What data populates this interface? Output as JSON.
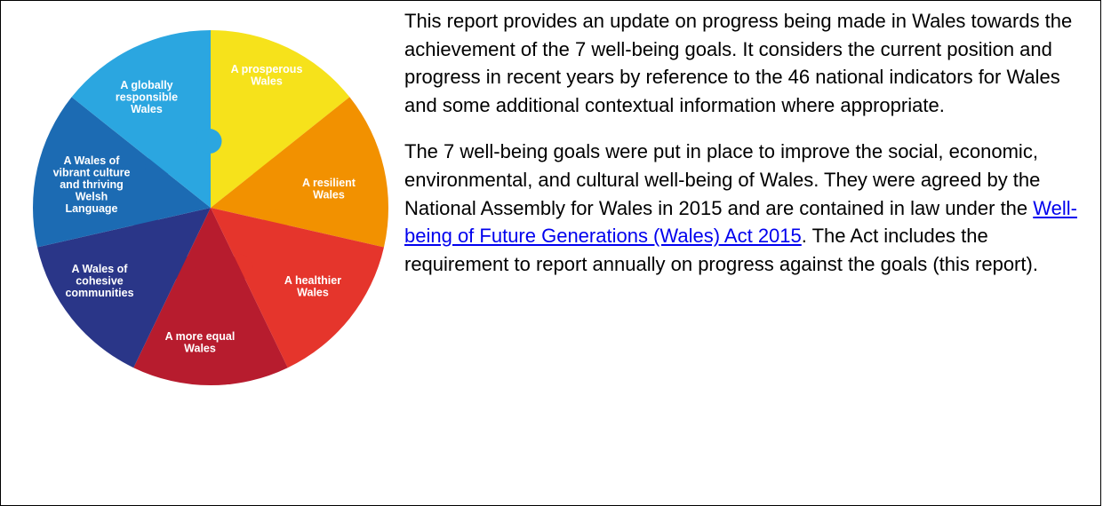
{
  "wheel": {
    "goals": [
      {
        "lines": [
          "A prosperous",
          "Wales"
        ],
        "color": "#f6e21b"
      },
      {
        "lines": [
          "A resilient",
          "Wales"
        ],
        "color": "#f29100"
      },
      {
        "lines": [
          "A healthier",
          "Wales"
        ],
        "color": "#e5352c"
      },
      {
        "lines": [
          "A more equal",
          "Wales"
        ],
        "color": "#b71c2e"
      },
      {
        "lines": [
          "A Wales of",
          "cohesive",
          "communities"
        ],
        "color": "#2a3688"
      },
      {
        "lines": [
          "A Wales of",
          "vibrant culture",
          "and thriving",
          "Welsh",
          "Language"
        ],
        "color": "#1c6bb3"
      },
      {
        "lines": [
          "A globally",
          "responsible",
          "Wales"
        ],
        "color": "#2ba6e0"
      }
    ]
  },
  "paragraphs": [
    {
      "text": "This report provides an update on progress being made in Wales towards the achievement of the 7 well-being goals. It considers the current position and progress in recent years by reference to the 46 national indicators for Wales and some additional contextual information where appropriate."
    },
    {
      "before": "The 7 well-being goals were put in place to improve the social, economic, environmental, and cultural well-being of Wales. They were agreed by the National Assembly for Wales in 2015 and are contained in law under the ",
      "link": "Well-being of Future Generations (Wales) Act 2015",
      "after": ". The Act includes the requirement to report annually on progress against the goals (this report)."
    }
  ]
}
